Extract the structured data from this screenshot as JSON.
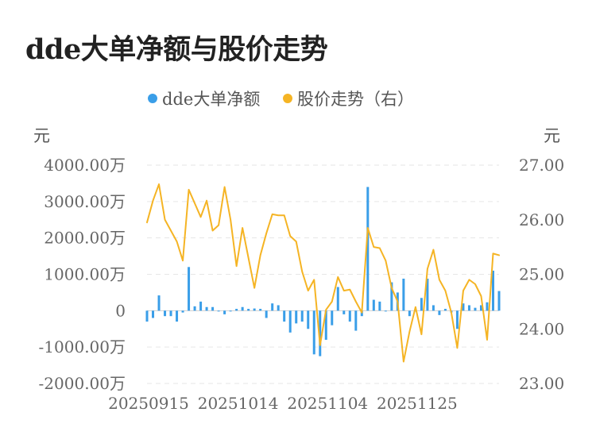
{
  "page_title": "dde大单净额与股价走势",
  "chart_data": {
    "type": "bar+line",
    "title": "dde大单净额与股价走势",
    "legend": {
      "placement": "top-center",
      "items": [
        {
          "label": "dde大单净额",
          "color": "#3a9ee8",
          "marker": "dot"
        },
        {
          "label": "股价走势（右）",
          "color": "#f5b424",
          "marker": "dot"
        }
      ]
    },
    "left_axis": {
      "unit": "元",
      "ylim": [
        -2000,
        4000
      ],
      "ticks": [
        4000,
        3000,
        2000,
        1000,
        0,
        -1000,
        -2000
      ],
      "tick_labels": [
        "4000.00万",
        "3000.00万",
        "2000.00万",
        "1000.00万",
        "0",
        "-1000.00万",
        "-2000.00万"
      ]
    },
    "right_axis": {
      "unit": "元",
      "ylim": [
        23,
        27
      ],
      "ticks": [
        27,
        26,
        25,
        24,
        23
      ],
      "tick_labels": [
        "27.00",
        "26.00",
        "25.00",
        "24.00",
        "23.00"
      ]
    },
    "x_tick_labels": [
      {
        "index": 0,
        "label": "20250915"
      },
      {
        "index": 15,
        "label": "20251014"
      },
      {
        "index": 30,
        "label": "20251104"
      },
      {
        "index": 45,
        "label": "20251125"
      }
    ],
    "grid": true,
    "series": [
      {
        "name": "dde大单净额",
        "type": "bar",
        "axis": "left",
        "color": "#3a9ee8",
        "values": [
          -300,
          -200,
          420,
          -150,
          -150,
          -300,
          -50,
          1200,
          120,
          250,
          100,
          100,
          0,
          -100,
          0,
          50,
          100,
          50,
          60,
          50,
          -200,
          200,
          150,
          -300,
          -600,
          -350,
          -300,
          -500,
          -1200,
          -1250,
          -800,
          -400,
          650,
          -100,
          -300,
          -550,
          -150,
          3400,
          300,
          250,
          0,
          780,
          500,
          880,
          -150,
          0,
          350,
          880,
          150,
          -120,
          50,
          -50,
          -500,
          200,
          150,
          80,
          150,
          230,
          1100,
          540
        ]
      },
      {
        "name": "股价走势（右）",
        "type": "line",
        "axis": "right",
        "color": "#f5b424",
        "values": [
          25.95,
          26.35,
          26.65,
          26.0,
          25.8,
          25.6,
          25.25,
          26.55,
          26.3,
          26.05,
          26.35,
          25.8,
          25.9,
          26.6,
          26.0,
          25.15,
          25.85,
          25.3,
          24.75,
          25.35,
          25.75,
          26.1,
          26.08,
          26.08,
          25.7,
          25.6,
          25.05,
          24.7,
          24.9,
          23.7,
          24.35,
          24.5,
          24.95,
          24.7,
          24.72,
          24.5,
          24.3,
          25.85,
          25.5,
          25.48,
          25.25,
          24.75,
          24.5,
          23.4,
          23.95,
          24.4,
          23.9,
          25.1,
          25.45,
          24.9,
          24.7,
          24.3,
          23.65,
          24.7,
          24.9,
          24.82,
          24.6,
          23.8,
          25.38,
          25.35
        ]
      }
    ]
  }
}
